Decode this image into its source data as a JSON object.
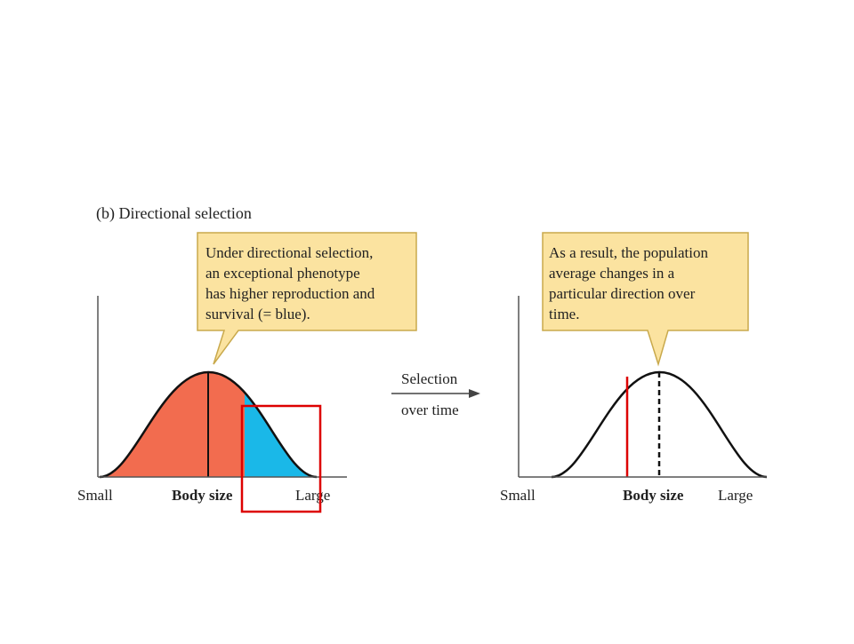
{
  "figure": {
    "heading": "(b) Directional selection"
  },
  "left_panel": {
    "callout_lines": [
      "Under directional selection,",
      "an exceptional phenotype",
      "has higher reproduction and",
      "survival (= blue)."
    ],
    "axis_left": "Small",
    "axis_center": "Body size",
    "axis_right": "Large"
  },
  "middle": {
    "arrow_top": "Selection",
    "arrow_bottom": "over time"
  },
  "right_panel": {
    "callout_lines": [
      "As a result, the population",
      "average changes in a",
      "particular direction over",
      "time."
    ],
    "axis_left": "Small",
    "axis_center": "Body size",
    "axis_right": "Large"
  },
  "colors": {
    "orange_fill": "#f26c4f",
    "blue_fill": "#1ab8e8",
    "callout_fill": "#fbe3a0",
    "callout_border": "#c9a94c",
    "highlight_red": "#dd0000"
  }
}
